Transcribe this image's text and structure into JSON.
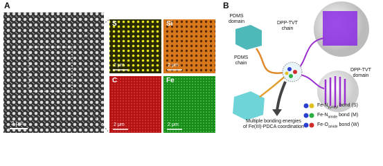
{
  "panel_a": {
    "letter": "A",
    "sem_scale": "3 μm",
    "maps": [
      {
        "element": "S",
        "scale": "2 μm"
      },
      {
        "element": "Si",
        "scale": "2 μm"
      },
      {
        "element": "C",
        "scale": "2 μm"
      },
      {
        "element": "Fe",
        "scale": "2 μm"
      }
    ]
  },
  "panel_b": {
    "letter": "B",
    "labels": {
      "pdms_domain": [
        "PDMS",
        "domain"
      ],
      "dpp_chain": [
        "DPP-TVT",
        "chain"
      ],
      "pdms_chain": [
        "PDMS",
        "chain"
      ],
      "dpp_domain": [
        "DPP-TVT",
        "domain"
      ]
    },
    "caption": [
      "Multiple bonding energies",
      "of Fe(III)-PDCA coordination"
    ],
    "legend": [
      {
        "prefix": "Fe-N",
        "sub": "pyridyl",
        "suffix": "bond (S)"
      },
      {
        "prefix": "Fe-N",
        "sub": "amide",
        "suffix": "bond (M)"
      },
      {
        "prefix": "Fe-O",
        "sub": "amide",
        "suffix": "bond (W)"
      }
    ]
  }
}
